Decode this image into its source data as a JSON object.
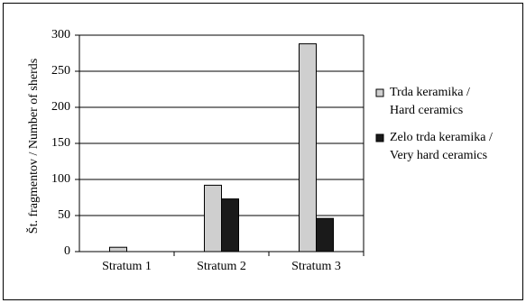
{
  "chart_data": {
    "type": "bar",
    "categories": [
      "Stratum 1",
      "Stratum 2",
      "Stratum 3"
    ],
    "series": [
      {
        "name_lines": [
          "Trda keramika /",
          "Hard ceramics"
        ],
        "values": [
          6,
          92,
          288
        ],
        "color": "#cfcfcf"
      },
      {
        "name_lines": [
          "Zelo trda keramika /",
          "Very hard ceramics"
        ],
        "values": [
          0,
          73,
          46
        ],
        "color": "#1a1a1a"
      }
    ],
    "ylabel": "Št. fragmentov / Number of sherds",
    "ylim": [
      0,
      300
    ],
    "yticks": [
      0,
      50,
      100,
      150,
      200,
      250,
      300
    ],
    "grid": true,
    "legend_position": "right"
  }
}
